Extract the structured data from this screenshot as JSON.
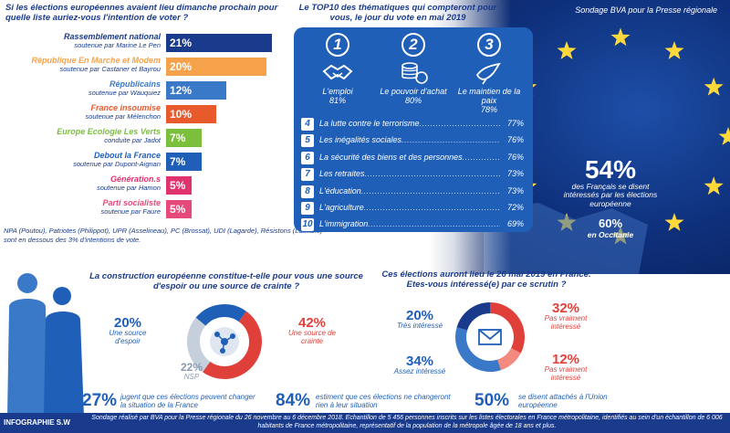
{
  "source_tag": "Sondage BVA pour la Presse régionale",
  "vote_question": "Si les élections européennes avaient lieu dimanche prochain pour quelle liste auriez-vous l'intention de voter ?",
  "parties": [
    {
      "party": "Rassemblement national",
      "leader": "soutenue par Marine Le Pen",
      "value": "21%",
      "share": 21,
      "color": "#1a3b8c"
    },
    {
      "party": "République En Marche et Modem",
      "leader": "soutenue par Castaner et Bayrou",
      "value": "20%",
      "share": 20,
      "color": "#f5a24a"
    },
    {
      "party": "Républicains",
      "leader": "soutenue par Wauquiez",
      "value": "12%",
      "share": 12,
      "color": "#3a78c8"
    },
    {
      "party": "France insoumise",
      "leader": "soutenue par Mélenchon",
      "value": "10%",
      "share": 10,
      "color": "#e8592c"
    },
    {
      "party": "Europe Ecologie Les Verts",
      "leader": "conduite par Jadot",
      "value": "7%",
      "share": 7,
      "color": "#7cbf3c"
    },
    {
      "party": "Debout la France",
      "leader": "soutenue par Dupont-Aignan",
      "value": "7%",
      "share": 7,
      "color": "#1f5fb8"
    },
    {
      "party": "Génération.s",
      "leader": "soutenue par Hamon",
      "value": "5%",
      "share": 5,
      "color": "#e0336e"
    },
    {
      "party": "Parti socialiste",
      "leader": "soutenue par Faure",
      "value": "5%",
      "share": 5,
      "color": "#e54a7a"
    }
  ],
  "minor_note": "NPA (Poutou), Patriotes (Philippot), UPR (Asselineau), PC (Brossat), UDI (Lagarde), Résistons (Lassalle) sont en dessous des 3% d'intentions de vote.",
  "top10_title": "Le TOP10 des thématiques qui compteront pour vous, le jour du vote en mai 2019",
  "top3": [
    {
      "rank": "1",
      "label": "L'emploi",
      "value": "81%",
      "icon": "handshake-icon"
    },
    {
      "rank": "2",
      "label": "Le pouvoir d'achat",
      "value": "80%",
      "icon": "coins-icon"
    },
    {
      "rank": "3",
      "label": "Le maintien de la paix",
      "value": "78%",
      "icon": "dove-icon"
    }
  ],
  "ranks": [
    {
      "rank": "4",
      "label": "La lutte contre le terrorisme",
      "value": "77%"
    },
    {
      "rank": "5",
      "label": "Les inégalités sociales",
      "value": "76%"
    },
    {
      "rank": "6",
      "label": "La sécurité des biens et des personnes",
      "value": "76%"
    },
    {
      "rank": "7",
      "label": "Les retraites",
      "value": "73%"
    },
    {
      "rank": "8",
      "label": "L'éducation",
      "value": "73%"
    },
    {
      "rank": "9",
      "label": "L'agriculture",
      "value": "72%"
    },
    {
      "rank": "10",
      "label": "L'immigration",
      "value": "69%"
    }
  ],
  "interest_national": {
    "value": "54%",
    "text": "des Français se disent intéressés par les élections européenne"
  },
  "interest_occitanie": {
    "value": "60%",
    "text": "en Occitanie"
  },
  "construction_question": "La construction européenne constitue-t-elle pour vous une source d'espoir ou une source de crainte ?",
  "construction": {
    "hope": {
      "value": "20%",
      "text": "Une source d'espoir",
      "share": 20
    },
    "fear": {
      "value": "42%",
      "text": "Une source de crainte",
      "share": 42
    },
    "nsp": {
      "value": "22%",
      "text": "NSP",
      "share": 22
    },
    "colors": {
      "hope": "#1f5fb8",
      "fear": "#e0403a",
      "nsp": "#c6cfdc"
    }
  },
  "interest_question": "Ces élections auront lieu le 26 mai 2019 en France. Etes-vous intéressé(e) par ce scrutin ?",
  "interest": {
    "very": {
      "value": "20%",
      "text": "Très intéressé",
      "share": 20
    },
    "rather": {
      "value": "34%",
      "text": "Assez intéressé",
      "share": 34
    },
    "not_really": {
      "value": "32%",
      "text": "Pas vraiment intéressé",
      "share": 32
    },
    "not_at_all": {
      "value": "12%",
      "text": "Pas vraiment intéressé",
      "share": 12
    },
    "colors": {
      "very": "#1a3b8c",
      "rather": "#3a78c8",
      "not_really": "#e0403a",
      "not_at_all": "#f28a80"
    }
  },
  "bottom_stats": [
    {
      "value": "27%",
      "text": "jugent que ces élections peuvent changer la situation de la France"
    },
    {
      "value": "84%",
      "text": "estiment que ces élections ne changeront rien à leur situation"
    },
    {
      "value": "50%",
      "text": "se disent attachés à l'Union européenne"
    }
  ],
  "footer": {
    "credit": "INFOGRAPHIE S.W",
    "text": "Sondage réalisé par BVA pour la Presse régionale du 26 novembre au 6 décembre 2018. Echantillon de 5 456 personnes inscrits sur les listes électorales en France métropolitaine, identifiés au sein d'un échantillon de 6 006 habitants de France métropolitaine, représentatif de la population de la métropole âgée de 18 ans et plus."
  },
  "colors": {
    "navy": "#1a3b8c",
    "blue": "#1f5fb8",
    "red": "#e0403a",
    "flag": "#0e2f7a",
    "star": "#ffd93b"
  }
}
